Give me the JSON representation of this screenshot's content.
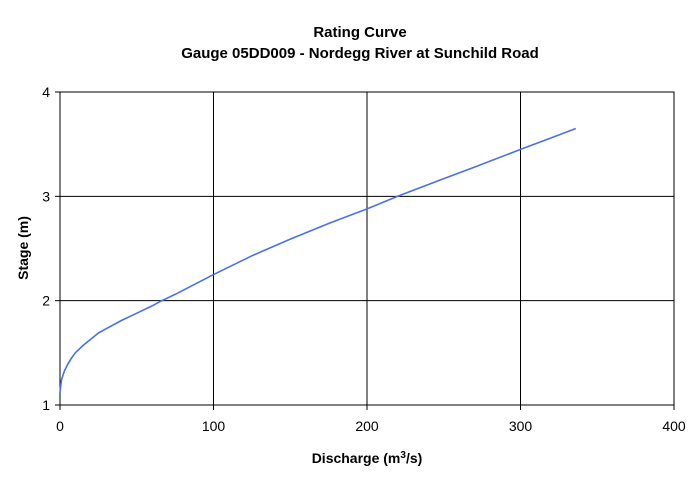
{
  "chart_data": {
    "type": "line",
    "title": "Rating Curve",
    "subtitle": "Gauge 05DD009 - Nordegg River at Sunchild Road",
    "xlabel": "Discharge (m",
    "xlabel_sup": "3",
    "xlabel_tail": "/s)",
    "ylabel": "Stage (m)",
    "xlim": [
      0,
      400
    ],
    "ylim": [
      1,
      4
    ],
    "xticks": [
      0,
      100,
      200,
      300,
      400
    ],
    "yticks": [
      1,
      2,
      3,
      4
    ],
    "grid": true,
    "line_color": "#4a70e8",
    "series": [
      {
        "x": [
          0,
          0.5,
          1,
          2,
          3,
          5,
          7.5,
          10,
          15,
          20,
          25,
          30,
          40,
          50,
          60,
          65,
          75,
          100,
          125,
          150,
          175,
          200,
          220,
          250,
          270,
          300,
          320,
          336
        ],
        "y": [
          1.12,
          1.19,
          1.24,
          1.29,
          1.33,
          1.39,
          1.45,
          1.5,
          1.57,
          1.63,
          1.69,
          1.73,
          1.81,
          1.88,
          1.95,
          1.99,
          2.06,
          2.25,
          2.43,
          2.59,
          2.74,
          2.88,
          3.0,
          3.17,
          3.28,
          3.45,
          3.56,
          3.65
        ]
      }
    ]
  }
}
